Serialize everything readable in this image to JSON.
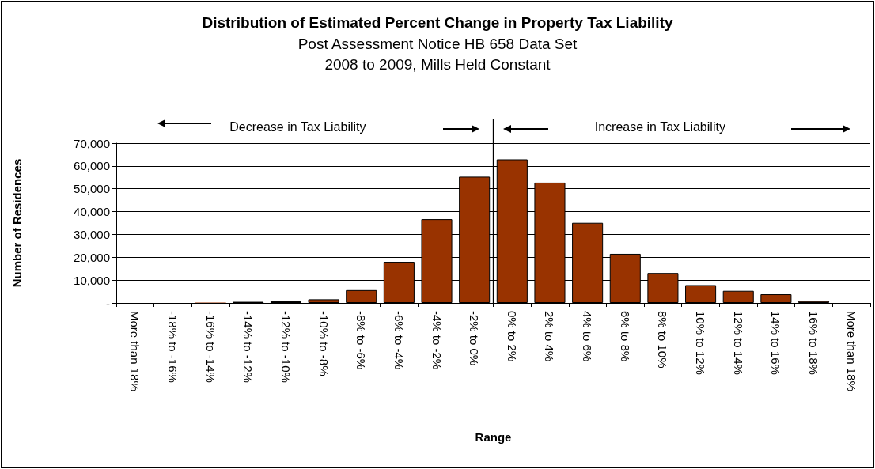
{
  "chart_data": {
    "type": "bar",
    "title": "Distribution of Estimated Percent Change in Property Tax Liability",
    "subtitle": "Post Assessment Notice HB 658 Data Set\n2008 to 2009, Mills Held Constant",
    "xlabel": "Range",
    "ylabel": "Number of Residences",
    "categories": [
      "More than 18%",
      "-18% to -16%",
      "-16% to -14%",
      "-14% to -12%",
      "-12% to -10%",
      "-10% to -8%",
      "-8% to -6%",
      "-6% to -4%",
      "-4% to -2%",
      "-2% to 0%",
      "0% to 2%",
      "2% to 4%",
      "4% to 6%",
      "6% to 8%",
      "8% to 10%",
      "10% to 12%",
      "12% to 14%",
      "14% to 16%",
      "16% to 18%",
      "More than 18%"
    ],
    "values": [
      0,
      0,
      200,
      500,
      700,
      1600,
      5600,
      18000,
      36700,
      55300,
      62900,
      52700,
      35100,
      21500,
      13100,
      7800,
      5300,
      3800,
      800,
      0
    ],
    "color": "#993300",
    "ylim": [
      0,
      70000
    ],
    "yticks": [
      {
        "value": 0,
        "label": "-"
      },
      {
        "value": 10000,
        "label": "10,000"
      },
      {
        "value": 20000,
        "label": "20,000"
      },
      {
        "value": 30000,
        "label": "30,000"
      },
      {
        "value": 40000,
        "label": "40,000"
      },
      {
        "value": 50000,
        "label": "50,000"
      },
      {
        "value": 60000,
        "label": "60,000"
      },
      {
        "value": 70000,
        "label": "70,000"
      }
    ],
    "grid": "y",
    "ref_lines": [
      {
        "axis": "x",
        "value": "0% to 2%",
        "color": "#000000"
      }
    ],
    "annotations": [
      "Decrease in Tax Liability",
      "Increase in Tax Liability"
    ]
  }
}
